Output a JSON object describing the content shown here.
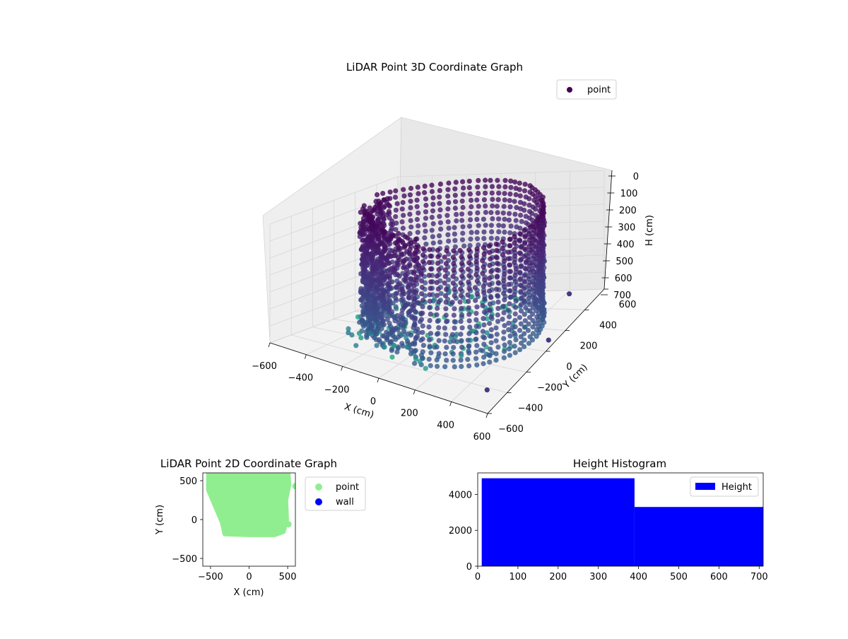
{
  "chart_data": [
    {
      "type": "scatter",
      "projection": "3d",
      "title": "LiDAR Point 3D Coordinate Graph",
      "xlabel": "X (cm)",
      "ylabel": "Y (cm)",
      "zlabel": "H (cm)",
      "xlim": [
        -600,
        600
      ],
      "ylim": [
        -600,
        600
      ],
      "zlim": [
        0,
        700
      ],
      "z_inverted": true,
      "xticks": [
        "−600",
        "−400",
        "−200",
        "0",
        "200",
        "400",
        "600"
      ],
      "yticks": [
        "−600",
        "−400",
        "−200",
        "0",
        "200",
        "400",
        "600"
      ],
      "zticks": [
        "0",
        "100",
        "200",
        "300",
        "400",
        "500",
        "600",
        "700"
      ],
      "colormap": "viridis",
      "grid": true,
      "legend": {
        "placement": "top-right",
        "entries": [
          "point"
        ]
      },
      "series": [
        {
          "name": "point",
          "color": "#440154",
          "shape": "cylindrical wall of points around the sensor, dense on the -x side, H from 0 to 700",
          "outliers": [
            {
              "x": 420,
              "y": 560,
              "h": 700
            },
            {
              "x": 560,
              "y": 100,
              "h": 700
            },
            {
              "x": 500,
              "y": -420,
              "h": 700
            }
          ]
        }
      ]
    },
    {
      "type": "scatter",
      "title": "LiDAR Point 2D Coordinate Graph",
      "xlabel": "X (cm)",
      "ylabel": "Y (cm)",
      "xlim": [
        -600,
        600
      ],
      "ylim": [
        -600,
        600
      ],
      "xticks": [
        "−500",
        "0",
        "500"
      ],
      "yticks": [
        "−500",
        "0",
        "500"
      ],
      "legend": {
        "placement": "outside-right",
        "entries": [
          "point",
          "wall"
        ]
      },
      "series": [
        {
          "name": "point",
          "color": "#90ee90",
          "region": [
            [
              -520,
              600
            ],
            [
              500,
              600
            ],
            [
              510,
              450
            ],
            [
              470,
              250
            ],
            [
              480,
              0
            ],
            [
              440,
              -150
            ],
            [
              330,
              -190
            ],
            [
              0,
              -190
            ],
            [
              -310,
              -180
            ],
            [
              -340,
              -40
            ],
            [
              -430,
              170
            ],
            [
              -520,
              380
            ]
          ],
          "outliers": [
            {
              "x": 510,
              "y": -60
            },
            {
              "x": 600,
              "y": 430
            }
          ]
        },
        {
          "name": "wall",
          "color": "#0000ff",
          "values": []
        }
      ]
    },
    {
      "type": "bar",
      "subtype": "histogram",
      "title": "Height Histogram",
      "xlim": [
        0,
        710
      ],
      "ylim": [
        0,
        5200
      ],
      "xticks": [
        0,
        100,
        200,
        300,
        400,
        500,
        600,
        700
      ],
      "yticks": [
        0,
        2000,
        4000
      ],
      "legend": {
        "placement": "top-right",
        "entries": [
          "Height"
        ]
      },
      "series": [
        {
          "name": "Height",
          "color": "#0000ff",
          "bins": [
            {
              "x0": 10,
              "x1": 390,
              "value": 4900
            },
            {
              "x0": 390,
              "x1": 710,
              "value": 3300
            }
          ]
        }
      ]
    }
  ]
}
